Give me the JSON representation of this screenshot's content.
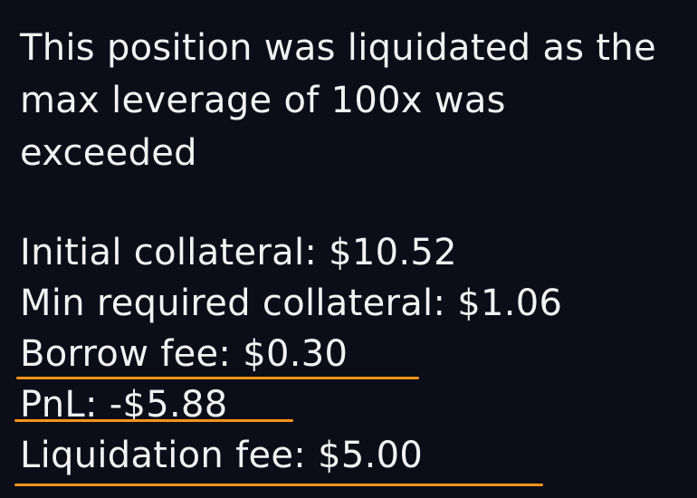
{
  "tooltip": {
    "message": "This position was liquidated as the max leverage of 100x was exceeded",
    "details": [
      {
        "label": "Initial collateral:",
        "value": "$10.52"
      },
      {
        "label": "Min required collateral:",
        "value": "$1.06"
      },
      {
        "label": "Borrow fee:",
        "value": "$0.30"
      },
      {
        "label": "PnL:",
        "value": "-$5.88"
      },
      {
        "label": "Liquidation fee:",
        "value": "$5.00"
      }
    ],
    "highlight_color": "#f7931a",
    "text_color": "#f2f2f2",
    "background_color": "#0b0e18"
  }
}
